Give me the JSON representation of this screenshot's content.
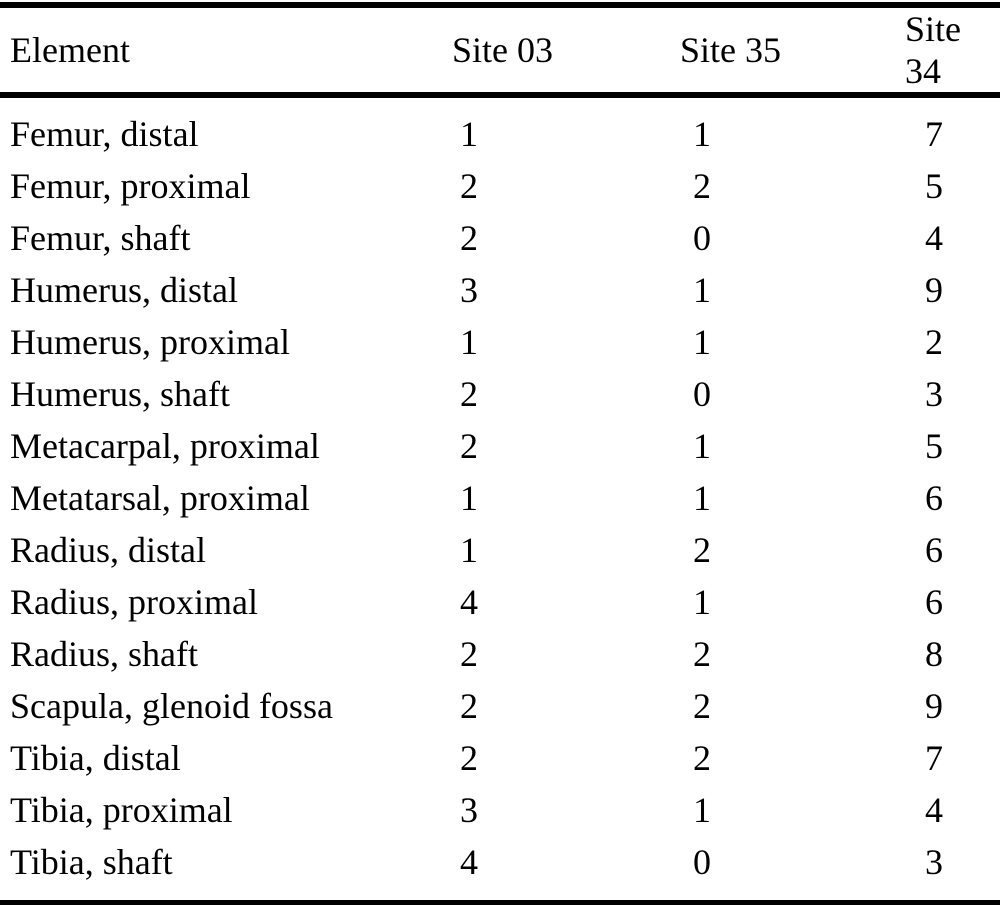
{
  "table": {
    "columns": [
      "Element",
      "Site 03",
      "Site 35",
      "Site 34"
    ],
    "rows": [
      {
        "element": "Femur, distal",
        "values": [
          "1",
          "1",
          "7"
        ]
      },
      {
        "element": "Femur, proximal",
        "values": [
          "2",
          "2",
          "5"
        ]
      },
      {
        "element": "Femur, shaft",
        "values": [
          "2",
          "0",
          "4"
        ]
      },
      {
        "element": "Humerus, distal",
        "values": [
          "3",
          "1",
          "9"
        ]
      },
      {
        "element": "Humerus, proximal",
        "values": [
          "1",
          "1",
          "2"
        ]
      },
      {
        "element": "Humerus, shaft",
        "values": [
          "2",
          "0",
          "3"
        ]
      },
      {
        "element": "Metacarpal, proximal",
        "values": [
          "2",
          "1",
          "5"
        ]
      },
      {
        "element": "Metatarsal, proximal",
        "values": [
          "1",
          "1",
          "6"
        ]
      },
      {
        "element": "Radius, distal",
        "values": [
          "1",
          "2",
          "6"
        ]
      },
      {
        "element": "Radius, proximal",
        "values": [
          "4",
          "1",
          "6"
        ]
      },
      {
        "element": "Radius, shaft",
        "values": [
          "2",
          "2",
          "8"
        ]
      },
      {
        "element": "Scapula, glenoid fossa",
        "values": [
          "2",
          "2",
          "9"
        ]
      },
      {
        "element": "Tibia, distal",
        "values": [
          "2",
          "2",
          "7"
        ]
      },
      {
        "element": "Tibia, proximal",
        "values": [
          "3",
          "1",
          "4"
        ]
      },
      {
        "element": "Tibia, shaft",
        "values": [
          "4",
          "0",
          "3"
        ]
      }
    ]
  },
  "colors": {
    "text": "#000000",
    "background": "#ffffff",
    "rule": "#000000"
  }
}
